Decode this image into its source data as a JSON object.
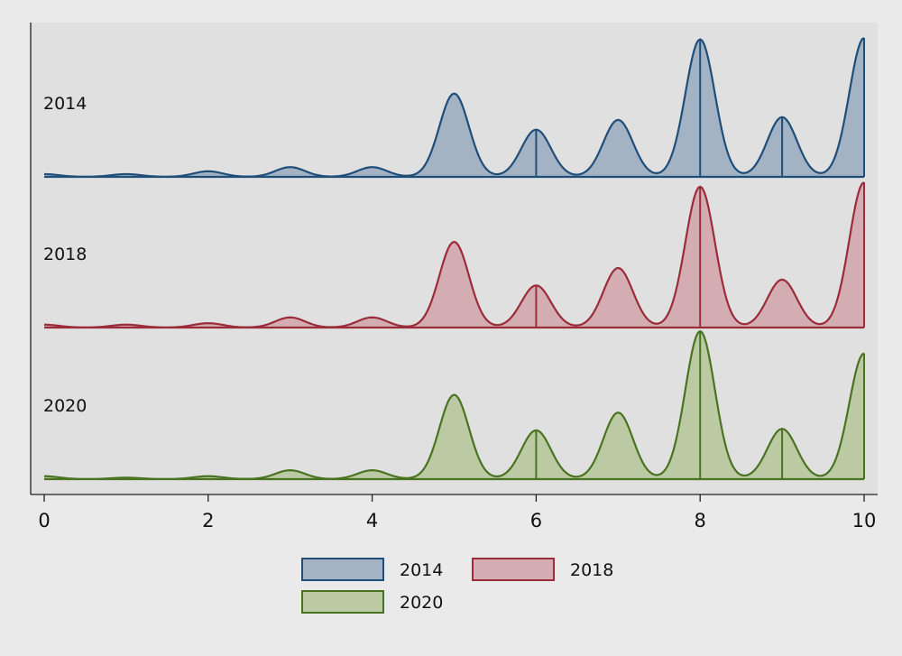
{
  "chart_data": {
    "type": "area",
    "subtype": "ridgeline-density",
    "xlim": [
      0,
      10
    ],
    "x_ticks": [
      0,
      2,
      4,
      6,
      8,
      10
    ],
    "x_grid": "x",
    "title": "",
    "xlabel": "",
    "ylabel": "",
    "legend_position": "bottom",
    "series": [
      {
        "name": "2014",
        "color": "#1f4e79",
        "fill": "#a3b3c4",
        "peaks": [
          {
            "x": 0,
            "h": 0.02
          },
          {
            "x": 1,
            "h": 0.02
          },
          {
            "x": 2,
            "h": 0.04
          },
          {
            "x": 3,
            "h": 0.07
          },
          {
            "x": 4,
            "h": 0.07
          },
          {
            "x": 5,
            "h": 0.6
          },
          {
            "x": 6,
            "h": 0.34
          },
          {
            "x": 7,
            "h": 0.41
          },
          {
            "x": 8,
            "h": 0.99
          },
          {
            "x": 9,
            "h": 0.43
          },
          {
            "x": 10,
            "h": 1.0
          }
        ],
        "drop_lines": [
          6,
          8,
          9,
          10
        ]
      },
      {
        "name": "2018",
        "color": "#9b2c3a",
        "fill": "#d4adb3",
        "peaks": [
          {
            "x": 0,
            "h": 0.02
          },
          {
            "x": 1,
            "h": 0.02
          },
          {
            "x": 2,
            "h": 0.03
          },
          {
            "x": 3,
            "h": 0.07
          },
          {
            "x": 4,
            "h": 0.07
          },
          {
            "x": 5,
            "h": 0.59
          },
          {
            "x": 6,
            "h": 0.29
          },
          {
            "x": 7,
            "h": 0.41
          },
          {
            "x": 8,
            "h": 0.97
          },
          {
            "x": 9,
            "h": 0.33
          },
          {
            "x": 10,
            "h": 1.0
          }
        ],
        "drop_lines": [
          6,
          8,
          10
        ]
      },
      {
        "name": "2020",
        "color": "#4a7321",
        "fill": "#bccaa4",
        "peaks": [
          {
            "x": 0,
            "h": 0.02
          },
          {
            "x": 1,
            "h": 0.01
          },
          {
            "x": 2,
            "h": 0.02
          },
          {
            "x": 3,
            "h": 0.06
          },
          {
            "x": 4,
            "h": 0.06
          },
          {
            "x": 5,
            "h": 0.57
          },
          {
            "x": 6,
            "h": 0.33
          },
          {
            "x": 7,
            "h": 0.45
          },
          {
            "x": 8,
            "h": 1.0
          },
          {
            "x": 9,
            "h": 0.34
          },
          {
            "x": 10,
            "h": 0.85
          }
        ],
        "drop_lines": [
          6,
          8,
          9,
          10
        ]
      }
    ]
  }
}
